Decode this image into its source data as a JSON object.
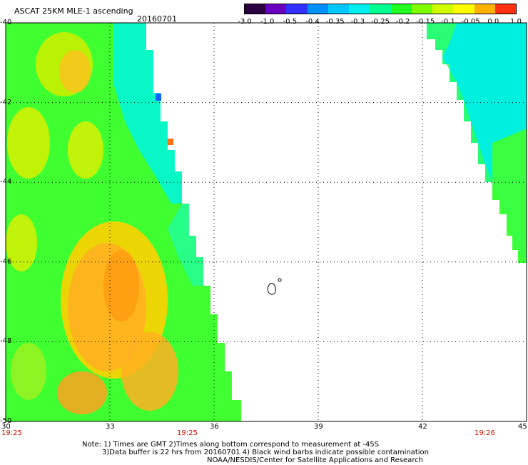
{
  "header": {
    "title": "ASCAT 25KM MLE-1 ascending",
    "date": "20160701"
  },
  "colorbar": {
    "labels": [
      "-3.0",
      "-1.0",
      "-0.5",
      "-0.4",
      "-0.35",
      "-0.3",
      "-0.25",
      "-0.2",
      "-0.15",
      "-0.1",
      "-0.05",
      "0.0",
      "1.0"
    ],
    "colors": [
      "#2a0040",
      "#6a00c0",
      "#3030ff",
      "#0090ff",
      "#00c8ff",
      "#00f0f0",
      "#00ff90",
      "#20ff20",
      "#80ff00",
      "#d0ff00",
      "#ffff00",
      "#ffb000",
      "#ff3010"
    ]
  },
  "axes": {
    "lat_labels": [
      "-40",
      "-42",
      "-44",
      "-46",
      "-48",
      "-50"
    ],
    "lon_labels": [
      "30",
      "33",
      "36",
      "39",
      "42",
      "45"
    ],
    "time_labels": [
      "19:25",
      "19:25",
      "19:26"
    ]
  },
  "map": {
    "lon_range": [
      30,
      45
    ],
    "lat_range": [
      -50,
      -40
    ],
    "grid": "dotted",
    "left_swath_color": "#40ff30",
    "left_swath_orange": "#ffb020",
    "left_swath_edge": "#00f5e0",
    "right_swath_color": "#00f0e0",
    "right_swath_edge": "#40ff30",
    "island": "contour outline near 37.5E 47S"
  },
  "notes": {
    "line1": "Note: 1) Times are GMT 2)Times along bottom correspond to measurement at -45S",
    "line2": "3)Data buffer is 22 hrs from 20160701 4) Black wind barbs indicate possible contamination",
    "line3": "NOAA/NESDIS/Center for Satellite Applications and Research"
  }
}
